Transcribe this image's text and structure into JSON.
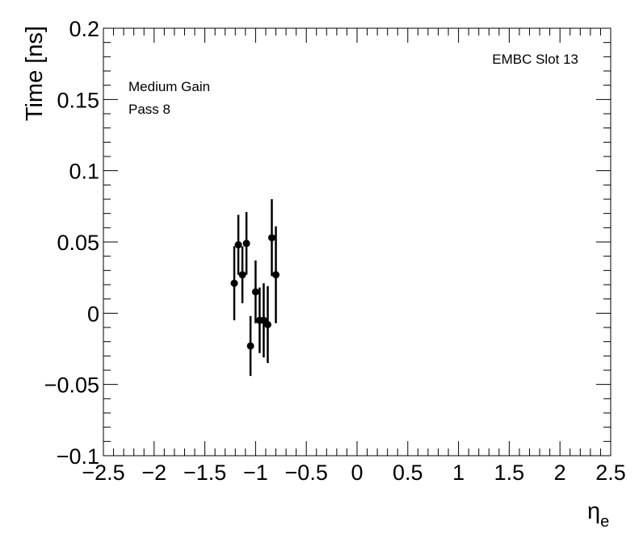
{
  "chart_data": {
    "type": "scatter",
    "xlabel": "η",
    "xlabel_subscript": "e",
    "ylabel": "Time [ns]",
    "annotations": [
      "EMBC Slot 13",
      "Medium Gain",
      "Pass 8"
    ],
    "series": [
      {
        "color": "#000000",
        "x": [
          -1.21,
          -1.17,
          -1.13,
          -1.09,
          -1.05,
          -1.0,
          -0.96,
          -0.92,
          -0.88,
          -0.84,
          -0.8
        ],
        "values": [
          0.021,
          0.048,
          0.027,
          0.049,
          -0.023,
          0.015,
          -0.005,
          -0.005,
          -0.008,
          0.053,
          0.027
        ],
        "errors": [
          0.026,
          0.021,
          0.02,
          0.022,
          0.021,
          0.022,
          0.023,
          0.026,
          0.027,
          0.027,
          0.034
        ]
      }
    ],
    "xlim": [
      -2.5,
      2.5
    ],
    "xticks": [
      {
        "value": -2.5,
        "label": "−2.5"
      },
      {
        "value": -2,
        "label": "−2"
      },
      {
        "value": -1.5,
        "label": "−1.5"
      },
      {
        "value": -1,
        "label": "−1"
      },
      {
        "value": -0.5,
        "label": "−0.5"
      },
      0,
      0.5,
      1,
      1.5,
      2,
      2.5
    ],
    "ylim": [
      -0.1,
      0.2
    ],
    "yticks": [
      {
        "value": -0.1,
        "label": "−0.1"
      },
      {
        "value": -0.05,
        "label": "−0.05"
      },
      0,
      0.05,
      0.1,
      0.15,
      0.2
    ]
  }
}
